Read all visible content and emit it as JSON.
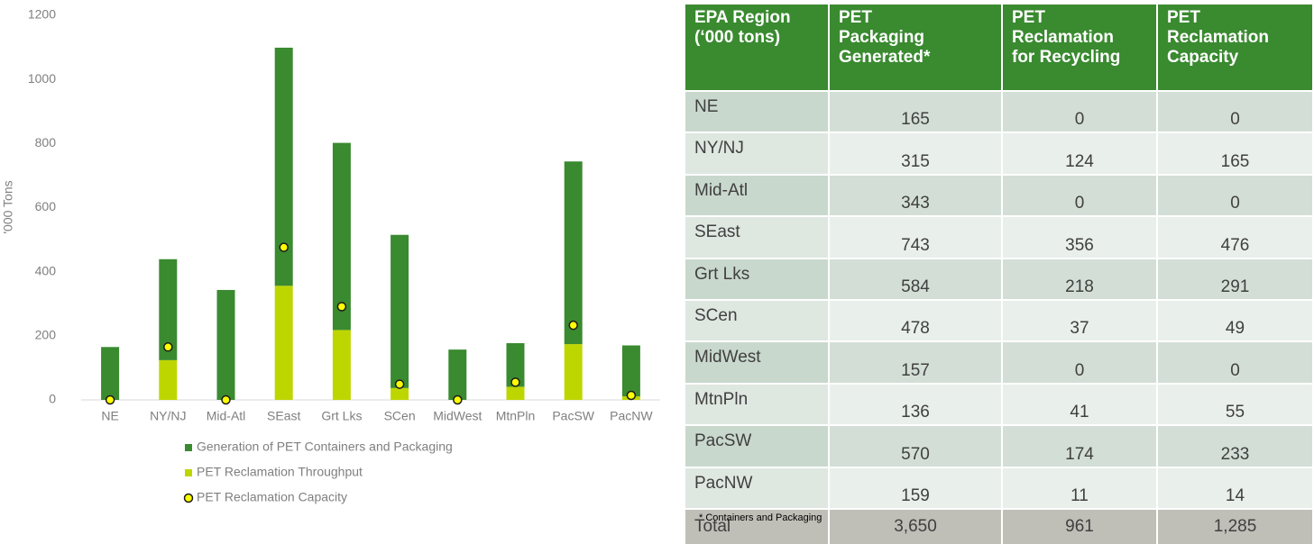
{
  "chart_data": {
    "type": "bar",
    "y_label": "'000 Tons",
    "categories": [
      "NE",
      "NY/NJ",
      "Mid-Atl",
      "SEast",
      "Grt Lks",
      "SCen",
      "MidWest",
      "MtnPln",
      "PacSW",
      "PacNW"
    ],
    "series": [
      {
        "name": "Generation of PET Containers and Packaging",
        "type": "bar",
        "color": "#3a8a30",
        "values": [
          165,
          315,
          343,
          743,
          584,
          478,
          157,
          136,
          570,
          159
        ]
      },
      {
        "name": "PET Reclamation Throughput",
        "type": "bar",
        "color": "#bed600",
        "values": [
          0,
          124,
          0,
          356,
          218,
          37,
          0,
          41,
          174,
          11
        ]
      },
      {
        "name": "PET Reclamation Capacity",
        "type": "scatter",
        "color": "#ffff00",
        "values": [
          0,
          165,
          0,
          476,
          291,
          49,
          0,
          55,
          233,
          14
        ]
      }
    ],
    "ylim": [
      0,
      1200
    ],
    "yticks": [
      0,
      200,
      400,
      600,
      800,
      1000,
      1200
    ],
    "grid": false
  },
  "table": {
    "header": [
      "EPA Region\n(‘000 tons)",
      "PET\nPackaging\nGenerated*",
      "PET\nReclamation\nfor Recycling",
      "PET\nReclamation\nCapacity"
    ],
    "rows": [
      [
        "NE",
        "165",
        "0",
        "0"
      ],
      [
        "NY/NJ",
        "315",
        "124",
        "165"
      ],
      [
        "Mid-Atl",
        "343",
        "0",
        "0"
      ],
      [
        "SEast",
        "743",
        "356",
        "476"
      ],
      [
        "Grt Lks",
        "584",
        "218",
        "291"
      ],
      [
        "SCen",
        "478",
        "37",
        "49"
      ],
      [
        "MidWest",
        "157",
        "0",
        "0"
      ],
      [
        "MtnPln",
        "136",
        "41",
        "55"
      ],
      [
        "PacSW",
        "570",
        "174",
        "233"
      ],
      [
        "PacNW",
        "159",
        "11",
        "14"
      ],
      [
        "Total",
        "3,650",
        "961",
        "1,285"
      ]
    ],
    "footnote": "* Containers and Packaging"
  }
}
